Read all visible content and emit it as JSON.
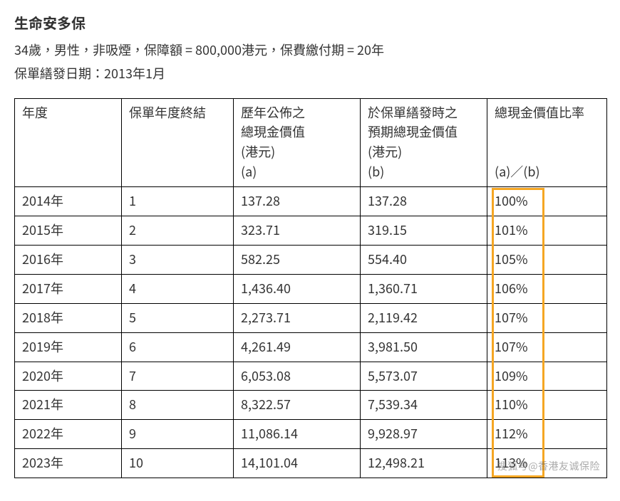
{
  "title": "生命安多保",
  "info_line1_parts": [
    "34歲，男性，非吸煙，保障額 = 800,000港元，保費繳付期 = 20年"
  ],
  "info_line2": "保單繕發日期：2013年1月",
  "table": {
    "columns": [
      "年度",
      "保單年度終結",
      "歷年公佈之\n總現金價值\n(港元)\n(a)",
      "於保單繕發時之\n預期總現金價值\n(港元)\n(b)",
      "總現金價值比率\n\n\n(a)／(b)"
    ],
    "rows": [
      [
        "2014年",
        "1",
        "137.28",
        "137.28",
        "100%"
      ],
      [
        "2015年",
        "2",
        "323.71",
        "319.15",
        "101%"
      ],
      [
        "2016年",
        "3",
        "582.25",
        "554.40",
        "105%"
      ],
      [
        "2017年",
        "4",
        "1,436.40",
        "1,360.71",
        "106%"
      ],
      [
        "2018年",
        "5",
        "2,273.71",
        "2,119.42",
        "107%"
      ],
      [
        "2019年",
        "6",
        "4,261.49",
        "3,981.50",
        "107%"
      ],
      [
        "2020年",
        "7",
        "6,053.08",
        "5,573.07",
        "109%"
      ],
      [
        "2021年",
        "8",
        "8,322.57",
        "7,539.34",
        "110%"
      ],
      [
        "2022年",
        "9",
        "11,086.14",
        "9,928.97",
        "112%"
      ],
      [
        "2023年",
        "10",
        "14,101.04",
        "12,498.21",
        "113%"
      ]
    ],
    "highlight": {
      "color": "#f5a623",
      "border_width": 3
    }
  },
  "watermark": "搜狐号@香港友诚保险",
  "colors": {
    "text": "#333333",
    "border": "#000000",
    "background": "#ffffff",
    "highlight_border": "#f5a623"
  }
}
